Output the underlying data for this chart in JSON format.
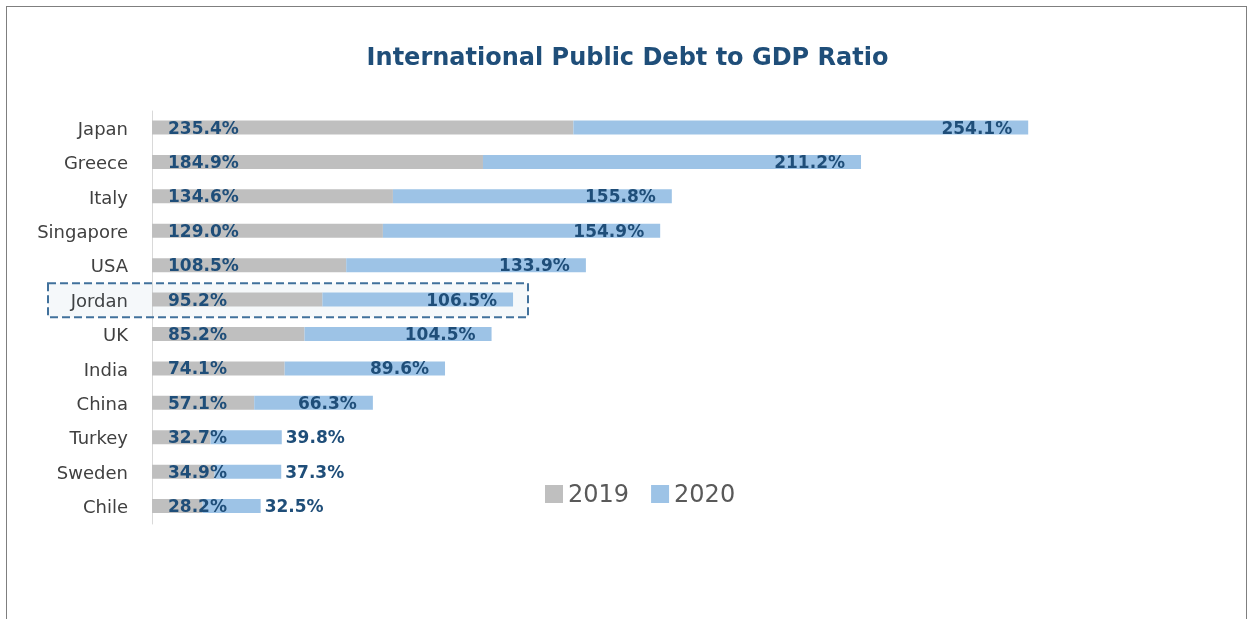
{
  "chart_data": {
    "type": "bar",
    "title": "International Public Debt to GDP Ratio",
    "orientation": "horizontal",
    "stacked": true,
    "legend": "bottom",
    "grid": false,
    "categories": [
      "Japan",
      "Greece",
      "Italy",
      "Singapore",
      "USA",
      "Jordan",
      "UK",
      "India",
      "China",
      "Turkey",
      "Sweden",
      "Chile"
    ],
    "series": [
      {
        "name": "2019",
        "color": "#bfbfbf",
        "values": [
          235.4,
          184.9,
          134.6,
          129.0,
          108.5,
          95.2,
          85.2,
          74.1,
          57.1,
          32.7,
          34.9,
          28.2
        ],
        "value_labels": [
          "235.4%",
          "184.9%",
          "134.6%",
          "129.0%",
          "108.5%",
          "95.2%",
          "85.2%",
          "74.1%",
          "57.1%",
          "32.7%",
          "34.9%",
          "28.2%"
        ]
      },
      {
        "name": "2020",
        "color": "#9dc3e6",
        "values": [
          254.1,
          211.2,
          155.8,
          154.9,
          133.9,
          106.5,
          104.5,
          89.6,
          66.3,
          39.8,
          37.3,
          32.5
        ],
        "value_labels": [
          "254.1%",
          "211.2%",
          "155.8%",
          "154.9%",
          "133.9%",
          "106.5%",
          "104.5%",
          "89.6%",
          "66.3%",
          "39.8%",
          "37.3%",
          "32.5%"
        ]
      }
    ],
    "bands": [
      {
        "axis": "y",
        "from": "Jordan",
        "to": "Jordan",
        "color": "#41719c"
      }
    ]
  }
}
